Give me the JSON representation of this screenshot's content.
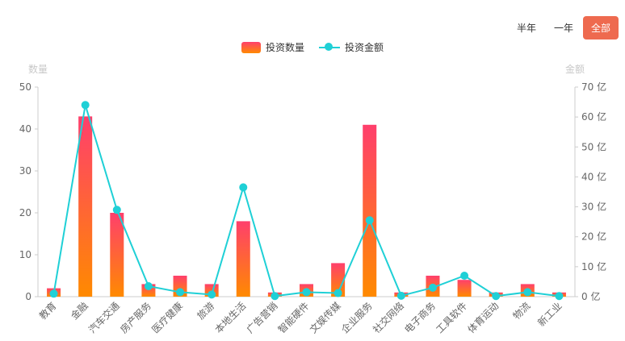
{
  "range": {
    "options": [
      "半年",
      "一年",
      "全部"
    ],
    "active": "全部",
    "active_color": "#ee6a4f"
  },
  "legend": {
    "count_label": "投资数量",
    "amount_label": "投资金额"
  },
  "chart_data": {
    "type": "bar",
    "categories": [
      "教育",
      "金融",
      "汽车交通",
      "房产服务",
      "医疗健康",
      "旅游",
      "本地生活",
      "广告营销",
      "智能硬件",
      "文娱传媒",
      "企业服务",
      "社交网络",
      "电子商务",
      "工具软件",
      "体育运动",
      "物流",
      "新工业"
    ],
    "series": [
      {
        "name": "投资数量",
        "type": "bar",
        "axis": "left",
        "values": [
          2,
          43,
          20,
          3,
          5,
          3,
          18,
          1,
          3,
          8,
          41,
          1,
          5,
          4,
          1,
          3,
          1
        ],
        "gradient": [
          "#ff3f6c",
          "#ff8a00"
        ]
      },
      {
        "name": "投资金额",
        "type": "line",
        "axis": "right",
        "values": [
          1,
          64,
          29,
          3.5,
          1.5,
          0.7,
          36.5,
          0.2,
          1.5,
          1.2,
          25.5,
          0.3,
          3,
          7,
          0.2,
          1.5,
          0.2
        ],
        "color": "#1fd0d6"
      }
    ],
    "ylabel_left": "数量",
    "ylabel_right": "金额",
    "ylim_left": [
      0,
      50
    ],
    "ylim_right": [
      0,
      70
    ],
    "yticks_left": [
      "0",
      "10",
      "20",
      "30",
      "40",
      "50"
    ],
    "yticks_right": [
      "0 亿",
      "10 亿",
      "20 亿",
      "30 亿",
      "40 亿",
      "50 亿",
      "60 亿",
      "70 亿"
    ],
    "grid": false,
    "legend_position": "top-center"
  }
}
